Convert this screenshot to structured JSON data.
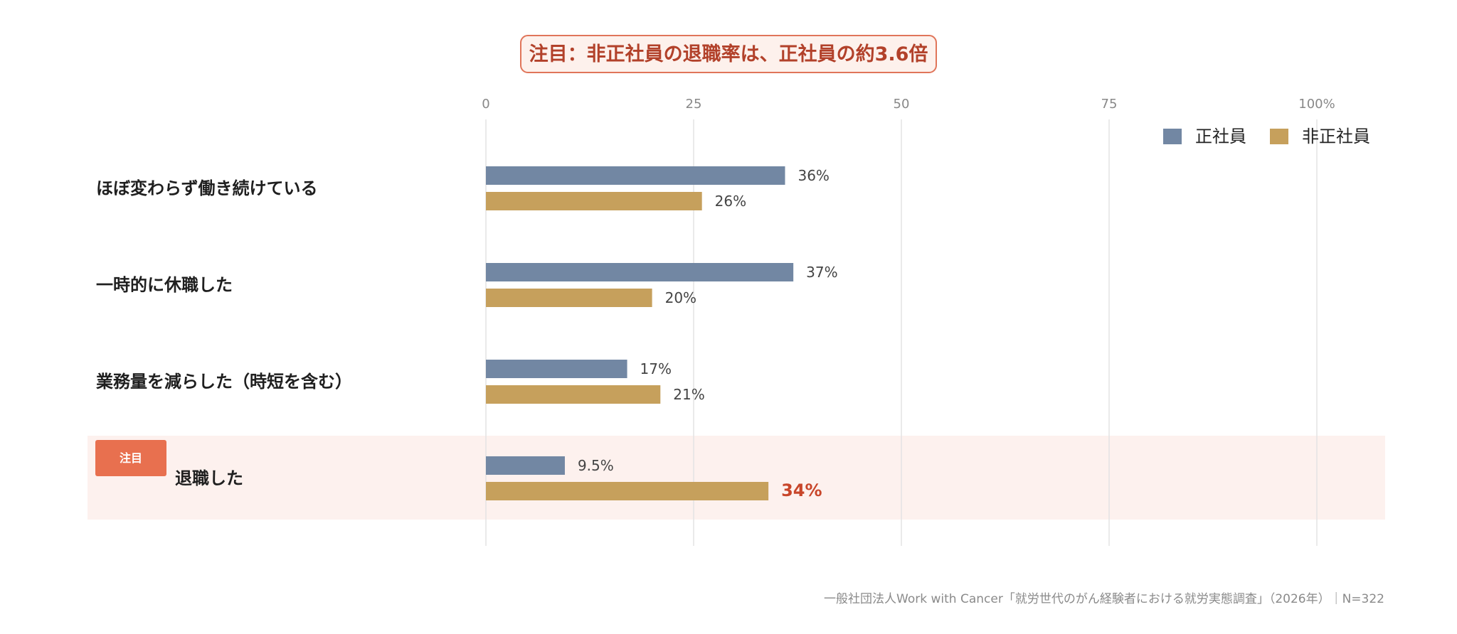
{
  "callout": {
    "text": "注目：非正社員の退職率は、正社員の約3.6倍"
  },
  "chart_data": {
    "type": "bar",
    "orientation": "horizontal",
    "title": "",
    "xlim": [
      0,
      100
    ],
    "x_ticks": [
      "0",
      "25",
      "50",
      "75",
      "100%"
    ],
    "grid": true,
    "legend_position": "top-right",
    "categories": [
      "ほぼ変わらず働き続けている",
      "一時的に休職した",
      "業務量を減らした（時短を含む）",
      "退職した"
    ],
    "series": [
      {
        "name": "正社員",
        "color": "#7287a3",
        "values": [
          36,
          37,
          17,
          9.5
        ],
        "labels": [
          "36%",
          "37%",
          "17%",
          "9.5%"
        ]
      },
      {
        "name": "非正社員",
        "color": "#c6a05c",
        "values": [
          26,
          20,
          21,
          34
        ],
        "labels": [
          "26%",
          "20%",
          "21%",
          "34%"
        ]
      }
    ],
    "highlight": {
      "category_index": 3,
      "badge": "注目",
      "row_color": "#fdf1ee",
      "badge_color": "#e8704f",
      "value_color": "#c8462a",
      "series_index": 1
    }
  },
  "footer": {
    "source": "一般社団法人Work with Cancer「就労世代のがん経験者における就労実態調査」（2026年）｜N=322"
  }
}
